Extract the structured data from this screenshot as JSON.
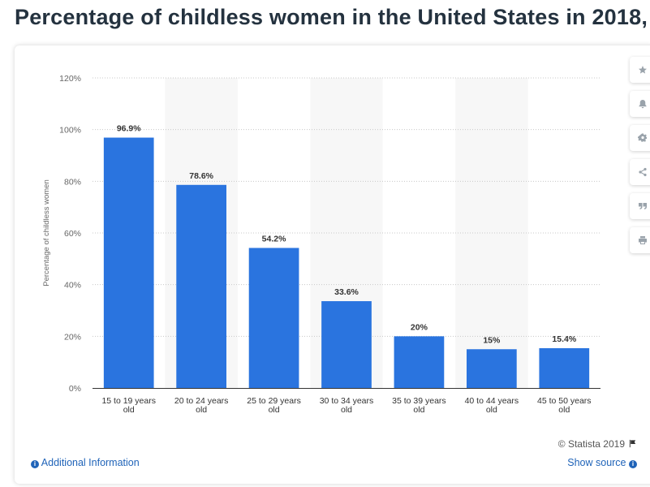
{
  "page": {
    "title": "Percentage of childless women in the United States in 2018,"
  },
  "toolbar": [
    {
      "name": "star-icon"
    },
    {
      "name": "bell-icon"
    },
    {
      "name": "gear-icon"
    },
    {
      "name": "share-icon"
    },
    {
      "name": "quote-icon"
    },
    {
      "name": "print-icon"
    }
  ],
  "footer": {
    "copyright": "© Statista 2019",
    "additional_info": "Additional Information",
    "show_source": "Show source"
  },
  "colors": {
    "bar": "#2a74df",
    "title": "#24323f",
    "link": "#1f63b8"
  },
  "chart_data": {
    "type": "bar",
    "title": "Percentage of childless women in the United States in 2018,",
    "xlabel": "",
    "ylabel": "Percentage of childless women",
    "ylim": [
      0,
      120
    ],
    "yticks": [
      0,
      20,
      40,
      60,
      80,
      100,
      120
    ],
    "ytick_labels": [
      "0%",
      "20%",
      "40%",
      "60%",
      "80%",
      "100%",
      "120%"
    ],
    "grid": true,
    "categories": [
      [
        "15 to 19 years",
        "old"
      ],
      [
        "20 to 24 years",
        "old"
      ],
      [
        "25 to 29 years",
        "old"
      ],
      [
        "30 to 34 years",
        "old"
      ],
      [
        "35 to 39 years",
        "old"
      ],
      [
        "40 to 44 years",
        "old"
      ],
      [
        "45 to 50 years",
        "old"
      ]
    ],
    "values": [
      96.9,
      78.6,
      54.2,
      33.6,
      20,
      15,
      15.4
    ],
    "value_labels": [
      "96.9%",
      "78.6%",
      "54.2%",
      "33.6%",
      "20%",
      "15%",
      "15.4%"
    ]
  }
}
